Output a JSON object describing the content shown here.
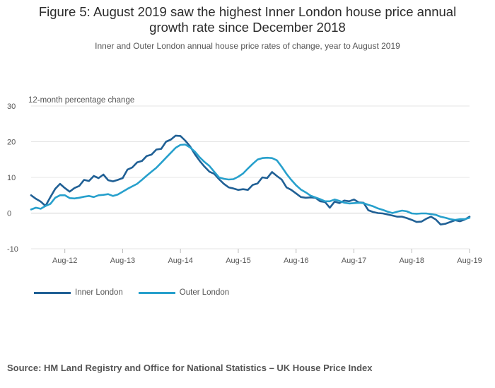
{
  "title_line1": "Figure 5: August 2019 saw the highest Inner London house price annual",
  "title_line2": "growth rate since December 2018",
  "subtitle": "Inner and Outer London annual house price rates of change, year to August 2019",
  "source": "Source: HM Land Registry and Office for National Statistics – UK House Price Index",
  "colors": {
    "inner": "#206095",
    "outer": "#27a0cc",
    "grid": "#e5e5e5",
    "axis": "#bbbbbb",
    "text": "#555555"
  },
  "chart_data": {
    "type": "line",
    "title": "Figure 5: August 2019 saw the highest Inner London house price annual growth rate since December 2018",
    "ylabel": "12-month percentage change",
    "xlabel": "",
    "ylim": [
      -10,
      30
    ],
    "yticks": [
      30,
      20,
      10,
      0,
      -10
    ],
    "x_start": "Jan-12",
    "x_end": "Aug-19",
    "x": [
      "Jan-12",
      "Feb-12",
      "Mar-12",
      "Apr-12",
      "May-12",
      "Jun-12",
      "Jul-12",
      "Aug-12",
      "Sep-12",
      "Oct-12",
      "Nov-12",
      "Dec-12",
      "Jan-13",
      "Feb-13",
      "Mar-13",
      "Apr-13",
      "May-13",
      "Jun-13",
      "Jul-13",
      "Aug-13",
      "Sep-13",
      "Oct-13",
      "Nov-13",
      "Dec-13",
      "Jan-14",
      "Feb-14",
      "Mar-14",
      "Apr-14",
      "May-14",
      "Jun-14",
      "Jul-14",
      "Aug-14",
      "Sep-14",
      "Oct-14",
      "Nov-14",
      "Dec-14",
      "Jan-15",
      "Feb-15",
      "Mar-15",
      "Apr-15",
      "May-15",
      "Jun-15",
      "Jul-15",
      "Aug-15",
      "Sep-15",
      "Oct-15",
      "Nov-15",
      "Dec-15",
      "Jan-16",
      "Feb-16",
      "Mar-16",
      "Apr-16",
      "May-16",
      "Jun-16",
      "Jul-16",
      "Aug-16",
      "Sep-16",
      "Oct-16",
      "Nov-16",
      "Dec-16",
      "Jan-17",
      "Feb-17",
      "Mar-17",
      "Apr-17",
      "May-17",
      "Jun-17",
      "Jul-17",
      "Aug-17",
      "Sep-17",
      "Oct-17",
      "Nov-17",
      "Dec-17",
      "Jan-18",
      "Feb-18",
      "Mar-18",
      "Apr-18",
      "May-18",
      "Jun-18",
      "Jul-18",
      "Aug-18",
      "Sep-18",
      "Oct-18",
      "Nov-18",
      "Dec-18",
      "Jan-19",
      "Feb-19",
      "Mar-19",
      "Apr-19",
      "May-19",
      "Jun-19",
      "Jul-19",
      "Aug-19"
    ],
    "xtick_labels": [
      "Aug-12",
      "Aug-13",
      "Aug-14",
      "Aug-15",
      "Aug-16",
      "Aug-17",
      "Aug-18",
      "Aug-19"
    ],
    "series": [
      {
        "name": "Inner London",
        "values": [
          5.0,
          4.0,
          3.2,
          2.0,
          4.5,
          6.8,
          8.2,
          7.0,
          6.0,
          7.0,
          7.6,
          9.3,
          9.0,
          10.4,
          9.8,
          10.8,
          9.2,
          8.9,
          9.3,
          9.8,
          12.2,
          12.8,
          14.2,
          14.6,
          16.0,
          16.4,
          17.8,
          18.0,
          20.0,
          20.6,
          21.7,
          21.6,
          20.3,
          18.7,
          16.5,
          14.6,
          13.0,
          11.6,
          11.0,
          9.5,
          8.2,
          7.2,
          6.9,
          6.5,
          6.7,
          6.5,
          7.9,
          8.3,
          10.0,
          9.8,
          11.5,
          10.4,
          9.4,
          7.2,
          6.5,
          5.5,
          4.5,
          4.3,
          4.4,
          4.3,
          3.3,
          3.1,
          1.5,
          3.2,
          2.8,
          3.5,
          3.3,
          3.8,
          3.0,
          2.9,
          0.8,
          0.3,
          0.0,
          -0.1,
          -0.4,
          -0.7,
          -1.0,
          -1.0,
          -1.4,
          -1.9,
          -2.5,
          -2.4,
          -1.6,
          -1.0,
          -1.8,
          -3.2,
          -3.0,
          -2.5,
          -2.0,
          -2.3,
          -1.8,
          -1.0
        ]
      },
      {
        "name": "Outer London",
        "values": [
          1.0,
          1.5,
          1.2,
          2.0,
          2.6,
          4.3,
          5.0,
          5.0,
          4.2,
          4.1,
          4.3,
          4.6,
          4.8,
          4.5,
          5.0,
          5.1,
          5.3,
          4.8,
          5.2,
          6.0,
          6.8,
          7.5,
          8.2,
          9.3,
          10.5,
          11.6,
          12.7,
          14.1,
          15.5,
          16.9,
          18.3,
          19.1,
          19.2,
          18.4,
          17.2,
          15.6,
          14.3,
          13.2,
          11.6,
          10.0,
          9.6,
          9.4,
          9.5,
          10.2,
          11.1,
          12.5,
          13.8,
          15.0,
          15.4,
          15.5,
          15.4,
          14.8,
          13.0,
          11.0,
          9.3,
          7.8,
          6.6,
          5.8,
          4.9,
          4.4,
          3.9,
          3.3,
          3.3,
          3.8,
          3.4,
          2.9,
          2.7,
          2.8,
          2.9,
          2.8,
          2.3,
          1.9,
          1.3,
          0.9,
          0.4,
          0.0,
          0.4,
          0.7,
          0.5,
          -0.1,
          -0.2,
          -0.1,
          -0.1,
          -0.3,
          -0.5,
          -1.0,
          -1.3,
          -1.7,
          -1.9,
          -1.7,
          -1.7,
          -1.3
        ]
      }
    ],
    "legend": [
      "Inner London",
      "Outer London"
    ],
    "legend_position": "bottom-left",
    "grid": true
  }
}
